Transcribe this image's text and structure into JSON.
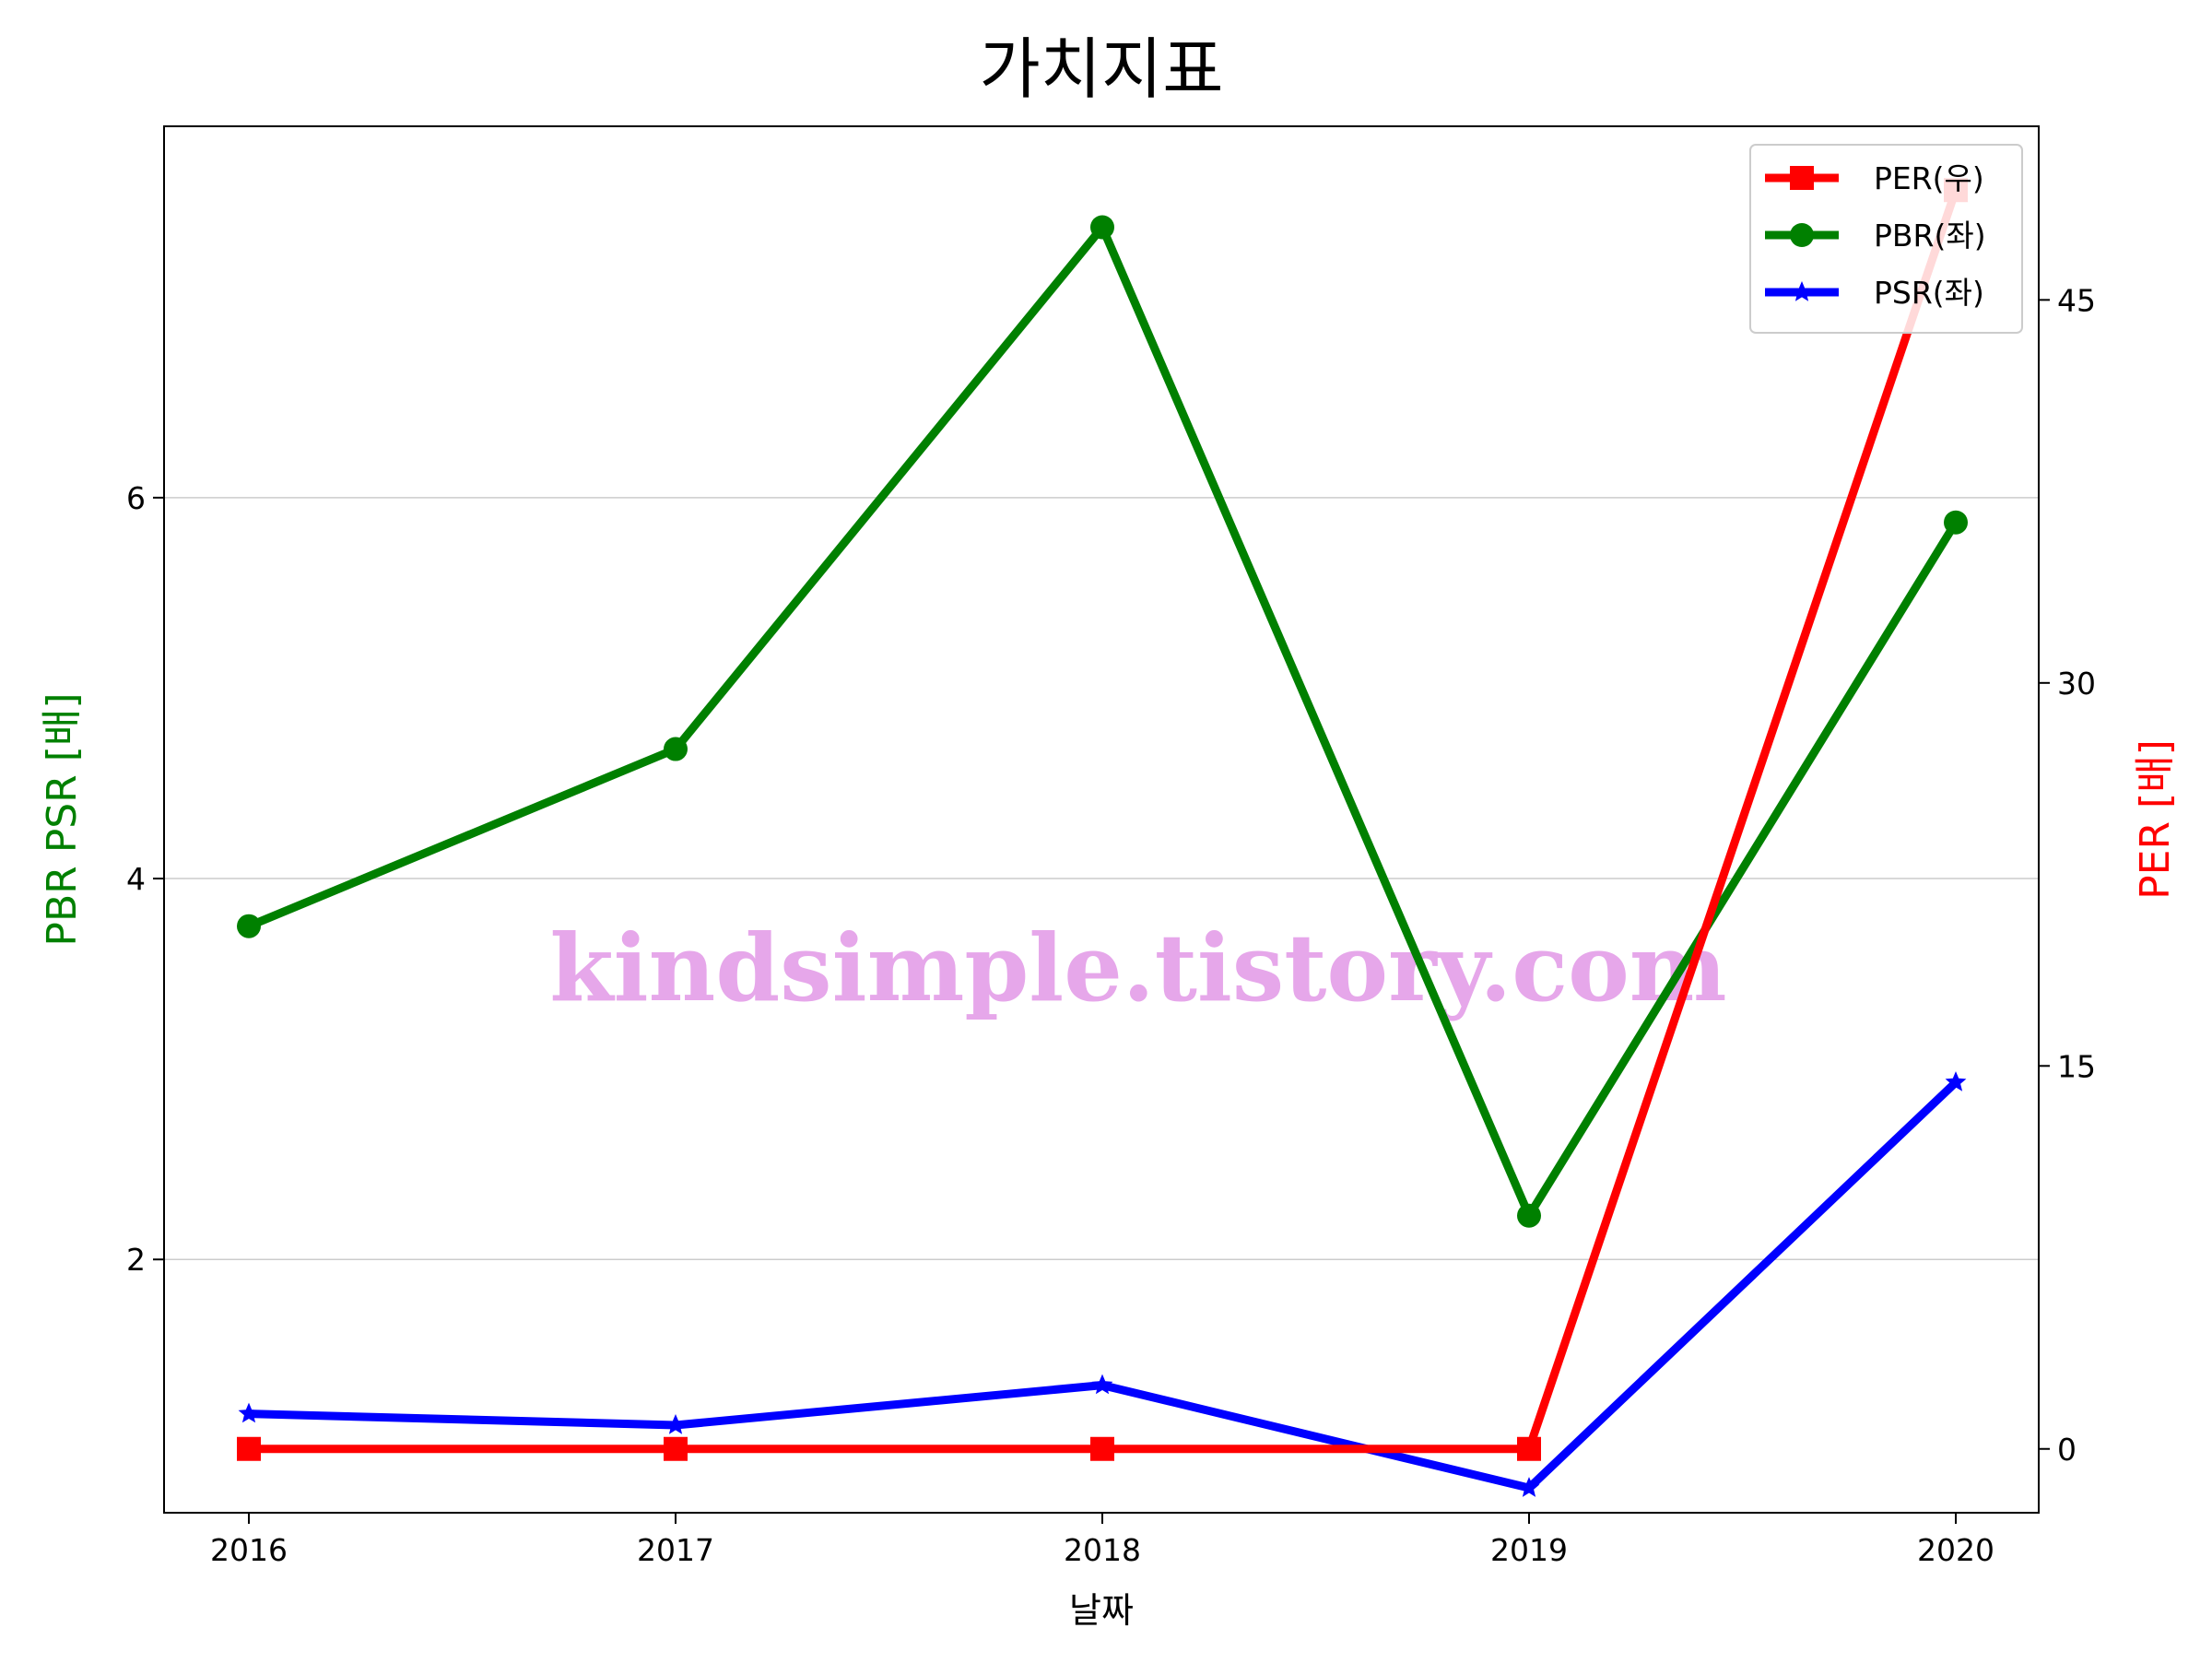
{
  "chart_data": {
    "type": "line",
    "title": "가치지표",
    "xlabel": "날짜",
    "ylabel_left": "PBR PSR [배]",
    "ylabel_right": "PER [배]",
    "categories": [
      "2016",
      "2017",
      "2018",
      "2019",
      "2020"
    ],
    "ylim_left": [
      0.67,
      7.95
    ],
    "yticks_left": [
      2,
      4,
      6
    ],
    "ylim_right": [
      -2.5,
      51.8
    ],
    "yticks_right": [
      0,
      15,
      30,
      45
    ],
    "grid": true,
    "legend_position": "top-right",
    "series": [
      {
        "name": "PER(우)",
        "axis": "right",
        "color": "#ff0000",
        "marker": "square",
        "values": [
          0,
          0,
          0,
          0,
          49.3
        ]
      },
      {
        "name": "PBR(좌)",
        "axis": "left",
        "color": "#008000",
        "marker": "circle",
        "values": [
          3.75,
          4.68,
          7.42,
          2.23,
          5.87
        ]
      },
      {
        "name": "PSR(좌)",
        "axis": "left",
        "color": "#0000ff",
        "marker": "star",
        "values": [
          1.19,
          1.13,
          1.34,
          0.8,
          2.93
        ]
      }
    ],
    "label_colors": {
      "ylabel_left": "#008000",
      "ylabel_right": "#ff0000"
    }
  },
  "watermark": "kindsimple.tistory.com"
}
